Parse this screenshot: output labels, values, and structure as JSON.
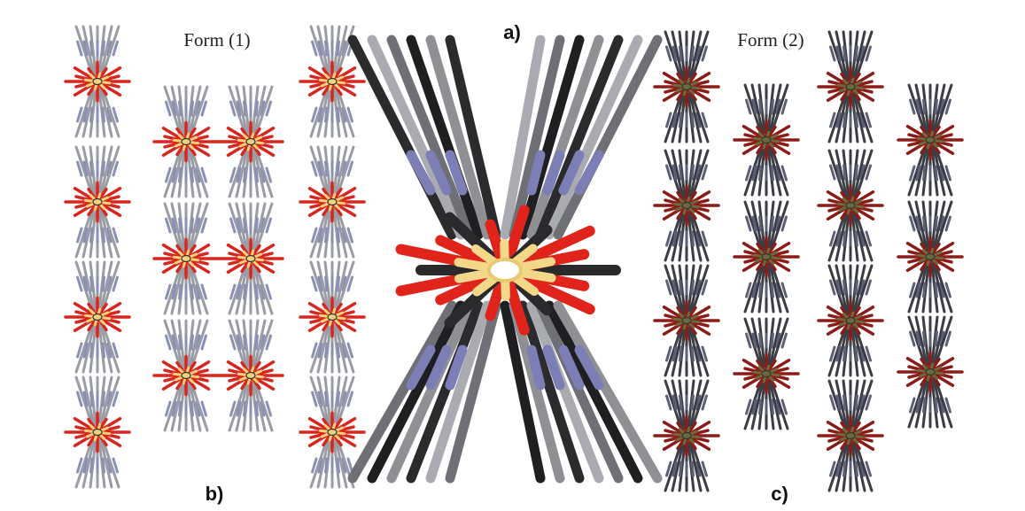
{
  "panel_a": {
    "label": "a)"
  },
  "panel_b": {
    "title": "Form (1)",
    "label": "b)"
  },
  "panel_c": {
    "title": "Form (2)",
    "label": "c)"
  }
}
